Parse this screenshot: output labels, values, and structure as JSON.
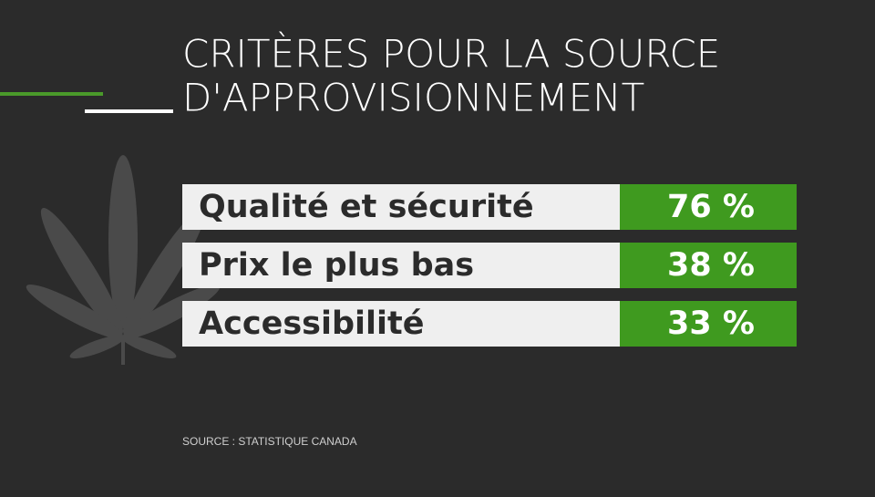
{
  "title": [
    "CRITÈRES POUR LA SOURCE",
    "D'APPROVISIONNEMENT"
  ],
  "table": {
    "rows": [
      [
        "Qualité et sécurité",
        "76 %"
      ],
      [
        "Prix le plus bas",
        "38 %"
      ],
      [
        "Accessibilité",
        "33 %"
      ]
    ]
  },
  "source": "SOURCE : STATISTIQUE CANADA"
}
